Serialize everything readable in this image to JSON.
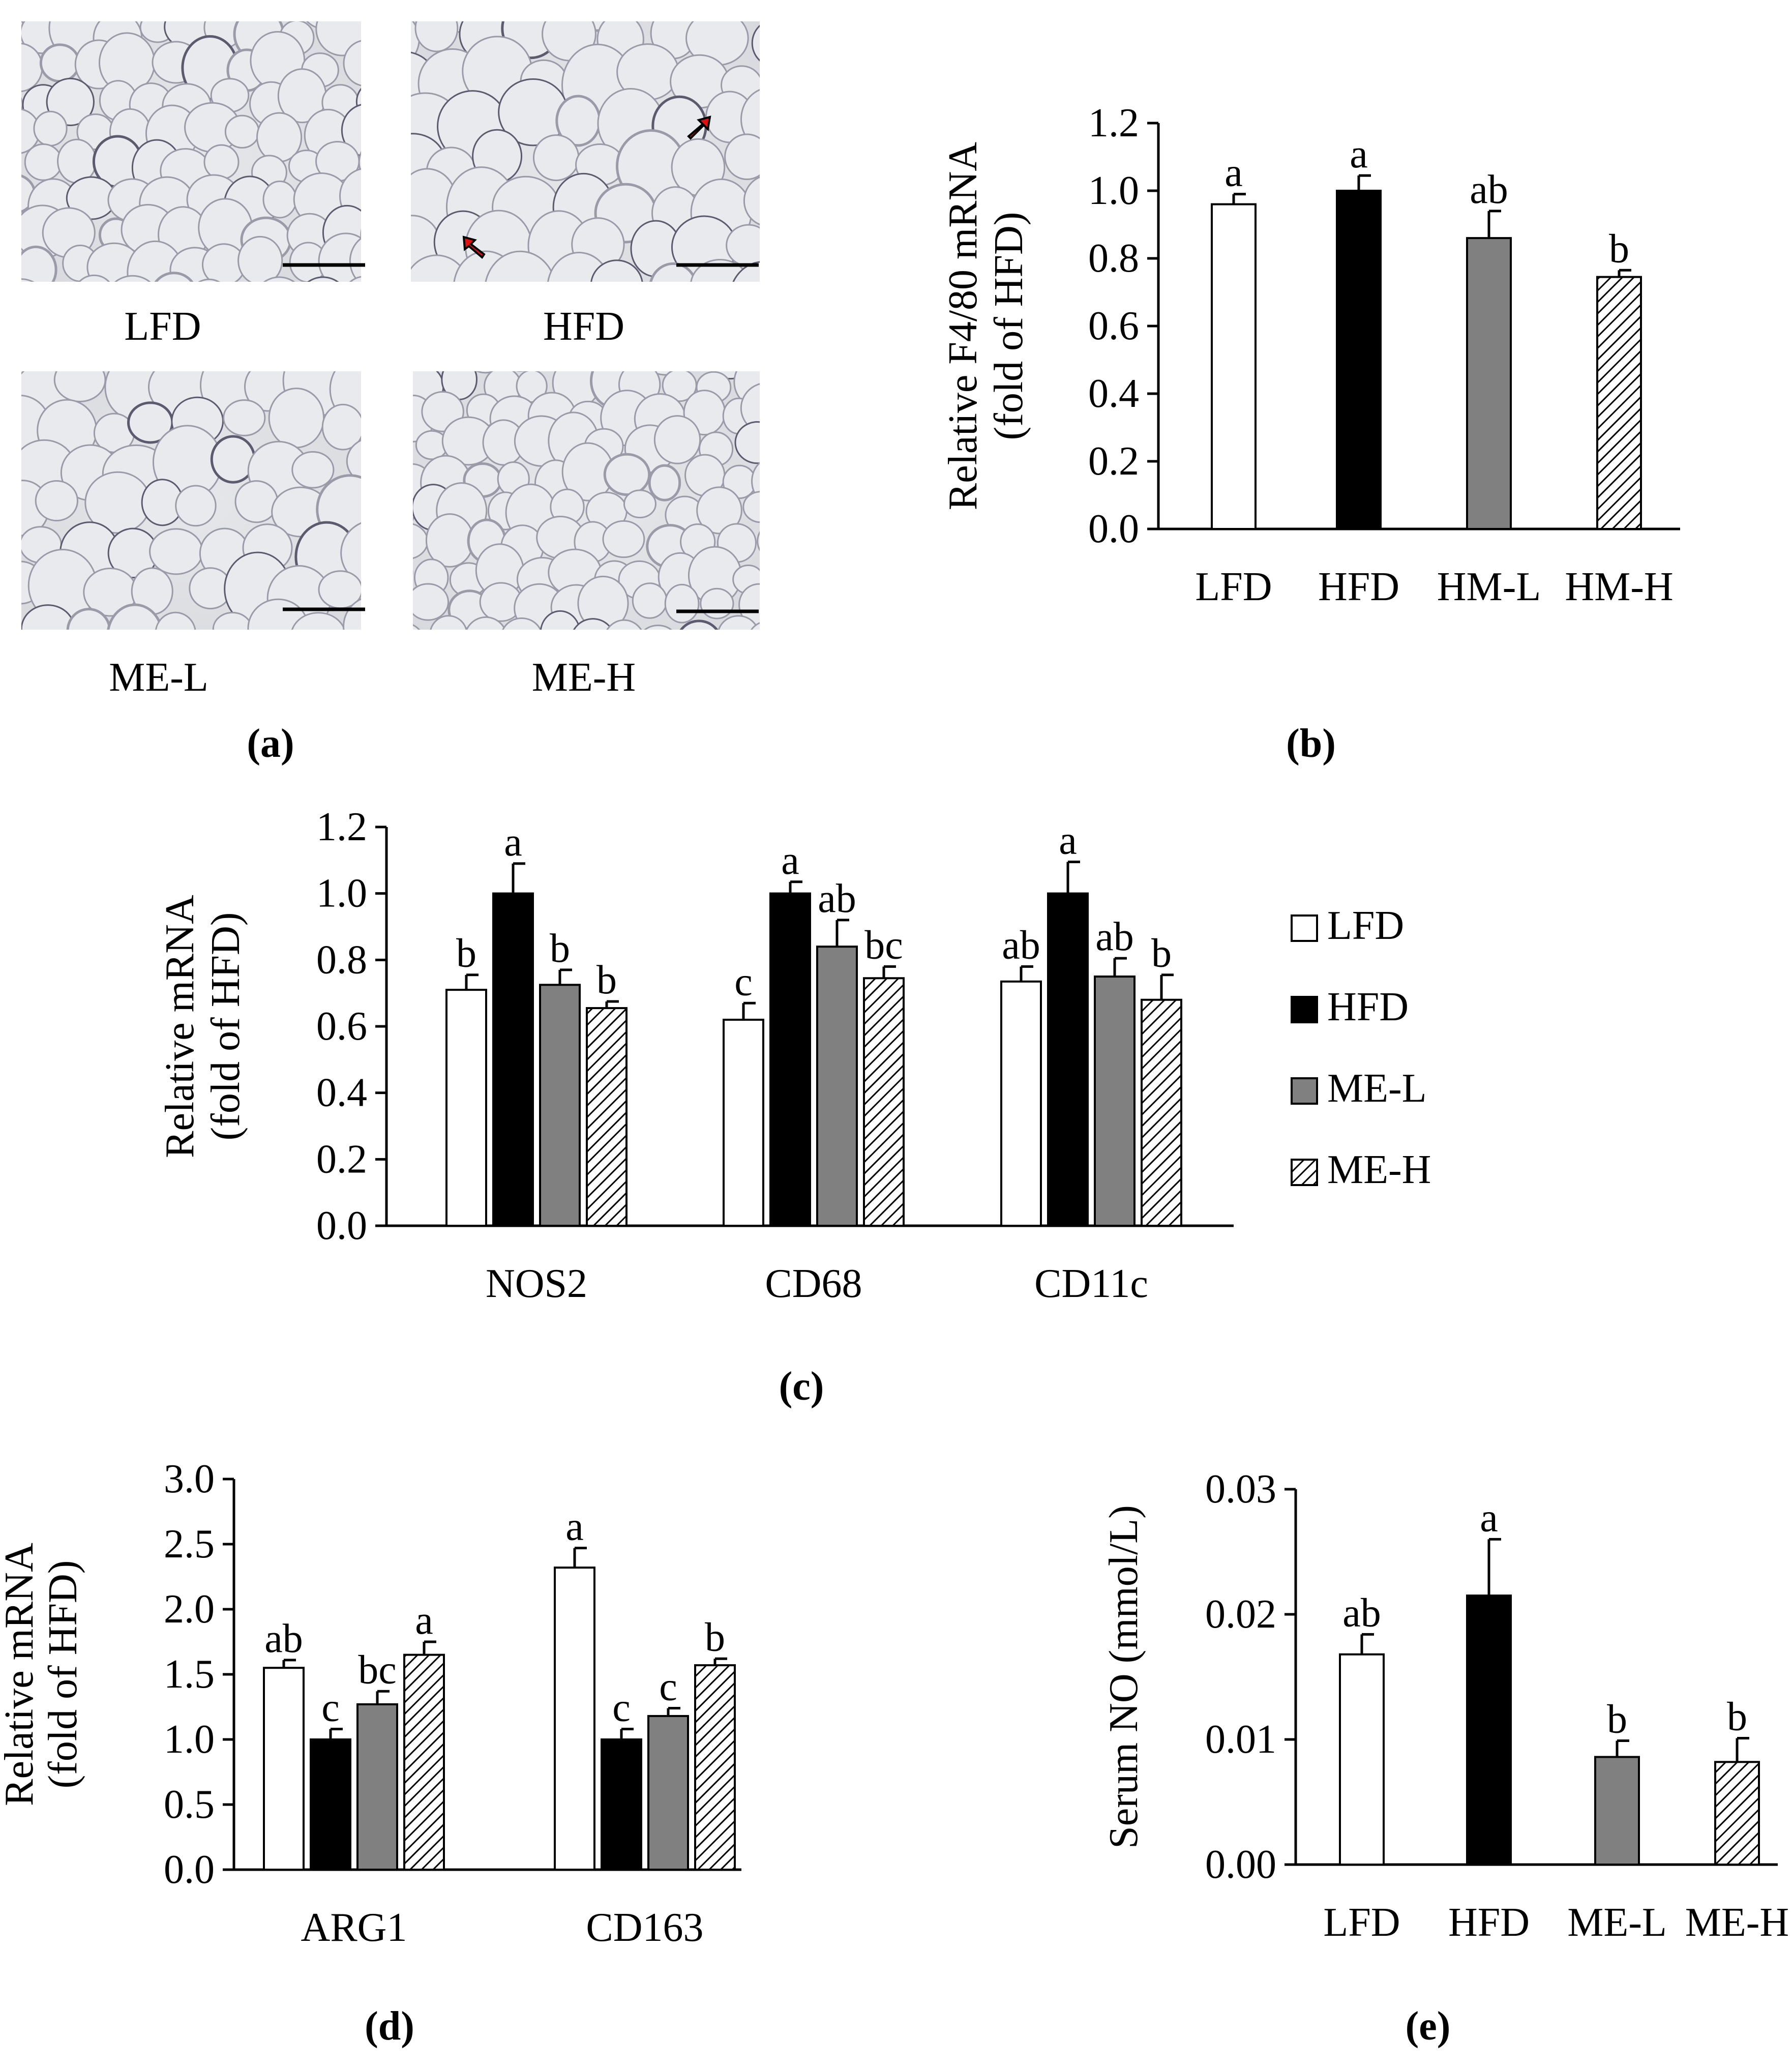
{
  "panels": {
    "a": "(a)",
    "b": "(b)",
    "c": "(c)",
    "d": "(d)",
    "e": "(e)"
  },
  "micrographs": [
    {
      "label": "LFD",
      "arrows": []
    },
    {
      "label": "HFD",
      "arrows": [
        "red-arrow",
        "red-arrow"
      ]
    },
    {
      "label": "ME-L",
      "arrows": []
    },
    {
      "label": "ME-H",
      "arrows": []
    }
  ],
  "group_styles": [
    {
      "fill": "#ffffff",
      "pattern": "none"
    },
    {
      "fill": "#000000",
      "pattern": "none"
    },
    {
      "fill": "#808080",
      "pattern": "none"
    },
    {
      "fill": "#ffffff",
      "pattern": "diagonal-hatch"
    }
  ],
  "chart_data": [
    {
      "id": "b",
      "type": "bar",
      "ylabel": [
        "Relative F4/80 mRNA",
        "(fold of HFD)"
      ],
      "ylim": [
        0,
        1.2
      ],
      "yticks": [
        0.0,
        0.2,
        0.4,
        0.6,
        0.8,
        1.0,
        1.2
      ],
      "grid": false,
      "legend": "none",
      "categories": [
        "LFD",
        "HFD",
        "HM-L",
        "HM-H"
      ],
      "values": [
        0.96,
        1.0,
        0.86,
        0.745
      ],
      "errors": [
        0.03,
        0.045,
        0.08,
        0.02
      ],
      "labels": [
        "a",
        "a",
        "ab",
        "b"
      ]
    },
    {
      "id": "c",
      "type": "bar",
      "ylabel": [
        "Relative mRNA",
        "(fold of HFD)"
      ],
      "ylim": [
        0,
        1.2
      ],
      "yticks": [
        0.0,
        0.2,
        0.4,
        0.6,
        0.8,
        1.0,
        1.2
      ],
      "grid": false,
      "legend": "right",
      "categories": [
        "NOS2",
        "CD68",
        "CD11c"
      ],
      "series": [
        {
          "name": "LFD",
          "values": [
            0.71,
            0.62,
            0.735
          ],
          "errors": [
            0.045,
            0.05,
            0.045
          ],
          "labels": [
            "b",
            "c",
            "ab"
          ]
        },
        {
          "name": "HFD",
          "values": [
            1.0,
            1.0,
            1.0
          ],
          "errors": [
            0.09,
            0.035,
            0.095
          ],
          "labels": [
            "a",
            "a",
            "a"
          ]
        },
        {
          "name": "ME-L",
          "values": [
            0.725,
            0.84,
            0.75
          ],
          "errors": [
            0.045,
            0.08,
            0.055
          ],
          "labels": [
            "b",
            "ab",
            "ab"
          ]
        },
        {
          "name": "ME-H",
          "values": [
            0.655,
            0.745,
            0.68
          ],
          "errors": [
            0.02,
            0.035,
            0.075
          ],
          "labels": [
            "b",
            "bc",
            "b"
          ]
        }
      ]
    },
    {
      "id": "d",
      "type": "bar",
      "ylabel": [
        "Relative mRNA",
        "(fold of HFD)"
      ],
      "ylim": [
        0,
        3.0
      ],
      "yticks": [
        0.0,
        0.5,
        1.0,
        1.5,
        2.0,
        2.5,
        3.0
      ],
      "grid": false,
      "legend": "none",
      "categories": [
        "ARG1",
        "CD163"
      ],
      "series": [
        {
          "values": [
            1.55,
            2.32
          ],
          "errors": [
            0.06,
            0.15
          ],
          "labels": [
            "ab",
            "a"
          ]
        },
        {
          "values": [
            1.0,
            1.0
          ],
          "errors": [
            0.08,
            0.08
          ],
          "labels": [
            "c",
            "c"
          ]
        },
        {
          "values": [
            1.27,
            1.18
          ],
          "errors": [
            0.1,
            0.06
          ],
          "labels": [
            "bc",
            "c"
          ]
        },
        {
          "values": [
            1.65,
            1.57
          ],
          "errors": [
            0.1,
            0.05
          ],
          "labels": [
            "a",
            "b"
          ]
        }
      ]
    },
    {
      "id": "e",
      "type": "bar",
      "ylabel": [
        "Serum NO (mmol/L)"
      ],
      "ylim": [
        0,
        0.03
      ],
      "yticks": [
        0.0,
        0.01,
        0.02,
        0.03
      ],
      "ytick_labels": [
        "0.00",
        "0.01",
        "0.02",
        "0.03"
      ],
      "grid": false,
      "legend": "none",
      "categories": [
        "LFD",
        "HFD",
        "ME-L",
        "ME-H"
      ],
      "values": [
        0.0168,
        0.0215,
        0.0086,
        0.0082
      ],
      "errors": [
        0.0016,
        0.0045,
        0.0013,
        0.0019
      ],
      "labels": [
        "ab",
        "a",
        "b",
        "b"
      ]
    }
  ]
}
